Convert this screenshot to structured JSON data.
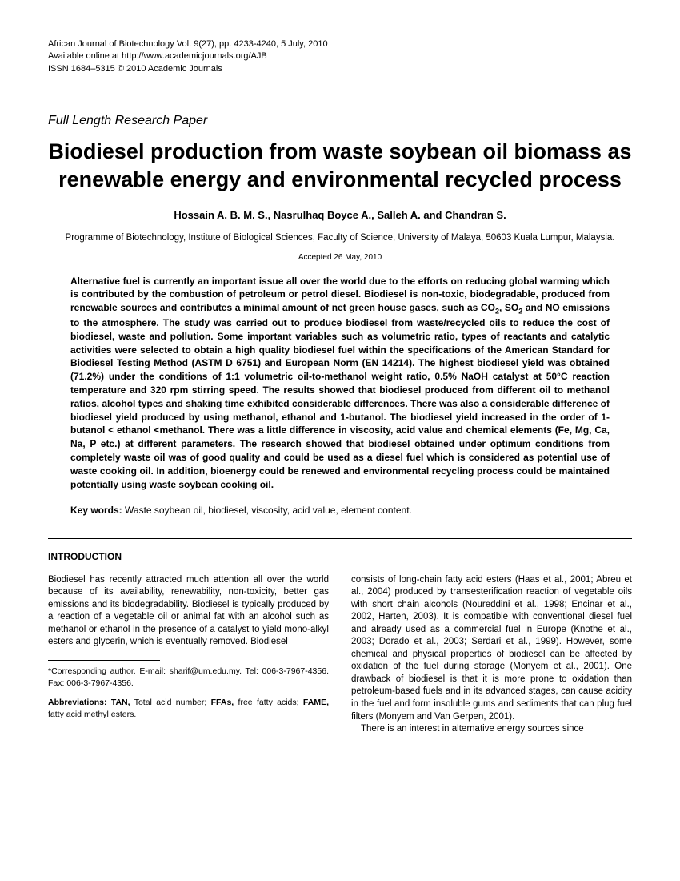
{
  "journal": {
    "line1": "African Journal of Biotechnology Vol. 9(27), pp. 4233-4240, 5 July, 2010",
    "line2": "Available online at http://www.academicjournals.org/AJB",
    "line3": "ISSN 1684–5315 © 2010 Academic Journals"
  },
  "paperType": "Full Length Research Paper",
  "title": "Biodiesel production from waste soybean oil biomass as renewable energy and environmental recycled process",
  "authors": "Hossain A. B. M. S., Nasrulhaq Boyce A., Salleh A. and Chandran S.",
  "affiliation": "Programme of Biotechnology, Institute of Biological Sciences, Faculty of Science, University of Malaya, 50603 Kuala Lumpur, Malaysia.",
  "accepted": "Accepted 26 May, 2010",
  "abstract": {
    "p1": "Alternative fuel is currently an important issue all over the world due to the efforts on reducing global warming which is contributed by the combustion of petroleum or petrol diesel. Biodiesel is non-toxic, biodegradable, produced from renewable sources and contributes a minimal amount of net green house gases, such as CO",
    "p2": ", SO",
    "p3": " and NO emissions to the atmosphere. The study was carried out to produce biodiesel from waste/recycled oils to reduce the cost of biodiesel, waste and pollution. Some important variables such as volumetric ratio, types of reactants and catalytic activities were selected to obtain a high quality biodiesel fuel within the specifications of the American Standard for Biodiesel Testing Method (ASTM D 6751) and European Norm (EN 14214). The highest biodiesel yield was obtained (71.2%) under the conditions of 1:1 volumetric oil-to-methanol weight ratio, 0.5% NaOH catalyst at 50°C reaction temperature and 320 rpm stirring speed. The results showed that biodiesel produced from different oil to methanol ratios, alcohol types and shaking time exhibited considerable differences. There was also a considerable difference of biodiesel yield produced by using methanol, ethanol and 1-butanol. The biodiesel yield increased in the order of 1-butanol < ethanol <methanol. There was a little difference in viscosity, acid value and chemical elements (Fe, Mg, Ca, Na, P etc.) at different parameters. The research showed that biodiesel obtained under optimum conditions from completely waste oil was of good quality and could be used as a diesel fuel which is considered as potential use of waste cooking oil. In addition, bioenergy could be renewed and environmental recycling process could be maintained potentially using waste soybean cooking oil."
  },
  "keywordsLabel": "Key words:",
  "keywordsText": " Waste soybean oil, biodiesel, viscosity, acid value, element content.",
  "sectionHeading": "INTRODUCTION",
  "leftCol": "Biodiesel has recently attracted much attention all over the world because of its availability, renewability, non-toxicity, better gas emissions and its biodegradability. Biodiesel is typically produced by a reaction of a vegetable oil or animal fat with an alcohol such as methanol or ethanol in the presence of a catalyst to yield mono-alkyl esters and glycerin, which is eventually removed. Biodiesel",
  "footnote1": "*Corresponding author. E-mail: sharif@um.edu.my. Tel: 006-3-7967-4356. Fax: 006-3-7967-4356.",
  "footnote2a": "Abbreviations: TAN,",
  "footnote2b": " Total acid number; ",
  "footnote2c": "FFAs,",
  "footnote2d": " free fatty acids; ",
  "footnote2e": "FAME,",
  "footnote2f": " fatty acid methyl esters.",
  "rightCol1": "consists of long-chain fatty acid esters (Haas et al., 2001; Abreu et al., 2004) produced by transesterification reaction of vegetable oils with short chain alcohols (Noureddini et al., 1998; Encinar et al., 2002, Harten, 2003). It is compatible with conventional diesel fuel and already used as a commercial fuel in Europe (Knothe et al., 2003; Dorado et al., 2003; Serdari et al., 1999). However, some chemical and physical properties of biodiesel can be affected by oxidation of the fuel during storage (Monyem et al., 2001). One drawback of biodiesel is that it is more prone to oxidation than petroleum-based fuels and in its advanced stages, can cause acidity in the fuel and form insoluble gums and sediments that can plug fuel filters (Monyem and Van Gerpen, 2001).",
  "rightCol2": "There is an interest in alternative energy sources  since"
}
